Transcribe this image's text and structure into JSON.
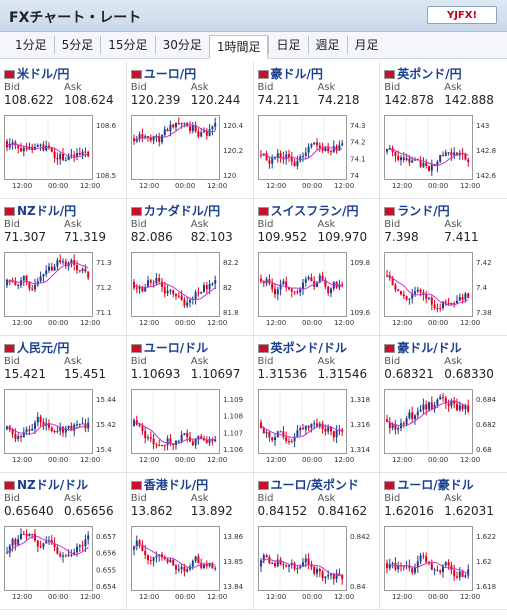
{
  "app": {
    "title": "FXチャート・レート",
    "logo_text": "YJFX!"
  },
  "tabs": [
    "1分足",
    "5分足",
    "15分足",
    "30分足",
    "1時間足",
    "日足",
    "週足",
    "月足"
  ],
  "active_tab": 4,
  "labels": {
    "bid": "Bid",
    "ask": "Ask"
  },
  "pairs": [
    {
      "name": "米ドル/円",
      "bid": "108.622",
      "ask": "108.624",
      "yticks": [
        "108.6",
        "108.5"
      ],
      "xticks": [
        "12:00",
        "00:00",
        "12:00"
      ]
    },
    {
      "name": "ユーロ/円",
      "bid": "120.239",
      "ask": "120.244",
      "yticks": [
        "120.4",
        "120.2",
        "120"
      ],
      "xticks": [
        "12:00",
        "00:00",
        "12:00"
      ]
    },
    {
      "name": "豪ドル/円",
      "bid": "74.211",
      "ask": "74.218",
      "yticks": [
        "74.3",
        "74.2",
        "74.1",
        "74"
      ],
      "xticks": [
        "12:00",
        "00:00",
        "12:00"
      ]
    },
    {
      "name": "英ポンド/円",
      "bid": "142.878",
      "ask": "142.888",
      "yticks": [
        "143",
        "142.8",
        "142.6"
      ],
      "xticks": [
        "12:00",
        "00:00",
        "12:00"
      ]
    },
    {
      "name": "NZドル/円",
      "bid": "71.307",
      "ask": "71.319",
      "yticks": [
        "71.3",
        "71.2",
        "71.1"
      ],
      "xticks": [
        "12:00",
        "00:00",
        "12:00"
      ]
    },
    {
      "name": "カナダドル/円",
      "bid": "82.086",
      "ask": "82.103",
      "yticks": [
        "82.2",
        "82",
        "81.8"
      ],
      "xticks": [
        "12:00",
        "00:00",
        "12:00"
      ]
    },
    {
      "name": "スイスフラン/円",
      "bid": "109.952",
      "ask": "109.970",
      "yticks": [
        "109.8",
        "109.6"
      ],
      "xticks": [
        "12:00",
        "00:00",
        "12:00"
      ]
    },
    {
      "name": "ランド/円",
      "bid": "7.398",
      "ask": "7.411",
      "yticks": [
        "7.42",
        "7.4",
        "7.38"
      ],
      "xticks": [
        "12:00",
        "00:00",
        "12:00"
      ]
    },
    {
      "name": "人民元/円",
      "bid": "15.421",
      "ask": "15.451",
      "yticks": [
        "15.44",
        "15.42",
        "15.4"
      ],
      "xticks": [
        "12:00",
        "00:00",
        "12:00"
      ]
    },
    {
      "name": "ユーロ/ドル",
      "bid": "1.10693",
      "ask": "1.10697",
      "yticks": [
        "1.109",
        "1.108",
        "1.107",
        "1.106"
      ],
      "xticks": [
        "12:00",
        "00:00",
        "12:00"
      ]
    },
    {
      "name": "英ポンド/ドル",
      "bid": "1.31536",
      "ask": "1.31546",
      "yticks": [
        "1.318",
        "1.316",
        "1.314"
      ],
      "xticks": [
        "12:00",
        "00:00",
        "12:00"
      ]
    },
    {
      "name": "豪ドル/ドル",
      "bid": "0.68321",
      "ask": "0.68330",
      "yticks": [
        "0.684",
        "0.682",
        "0.68"
      ],
      "xticks": [
        "12:00",
        "00:00",
        "12:00"
      ]
    },
    {
      "name": "NZドル/ドル",
      "bid": "0.65640",
      "ask": "0.65656",
      "yticks": [
        "0.657",
        "0.656",
        "0.655",
        "0.654"
      ],
      "xticks": [
        "12:00",
        "00:00",
        "12:00"
      ]
    },
    {
      "name": "香港ドル/円",
      "bid": "13.862",
      "ask": "13.892",
      "yticks": [
        "13.86",
        "13.85",
        "13.84"
      ],
      "xticks": [
        "12:00",
        "00:00",
        "12:00"
      ]
    },
    {
      "name": "ユーロ/英ポンド",
      "bid": "0.84152",
      "ask": "0.84162",
      "yticks": [
        "0.842",
        "0.84"
      ],
      "xticks": [
        "12:00",
        "00:00",
        "12:00"
      ]
    },
    {
      "name": "ユーロ/豪ドル",
      "bid": "1.62016",
      "ask": "1.62031",
      "yticks": [
        "1.622",
        "1.62",
        "1.618"
      ],
      "xticks": [
        "12:00",
        "00:00",
        "12:00"
      ]
    }
  ],
  "colors": {
    "up": "#1a3f8f",
    "down": "#e0001b",
    "ma": "#cc33cc",
    "link": "#1a3f8f"
  }
}
